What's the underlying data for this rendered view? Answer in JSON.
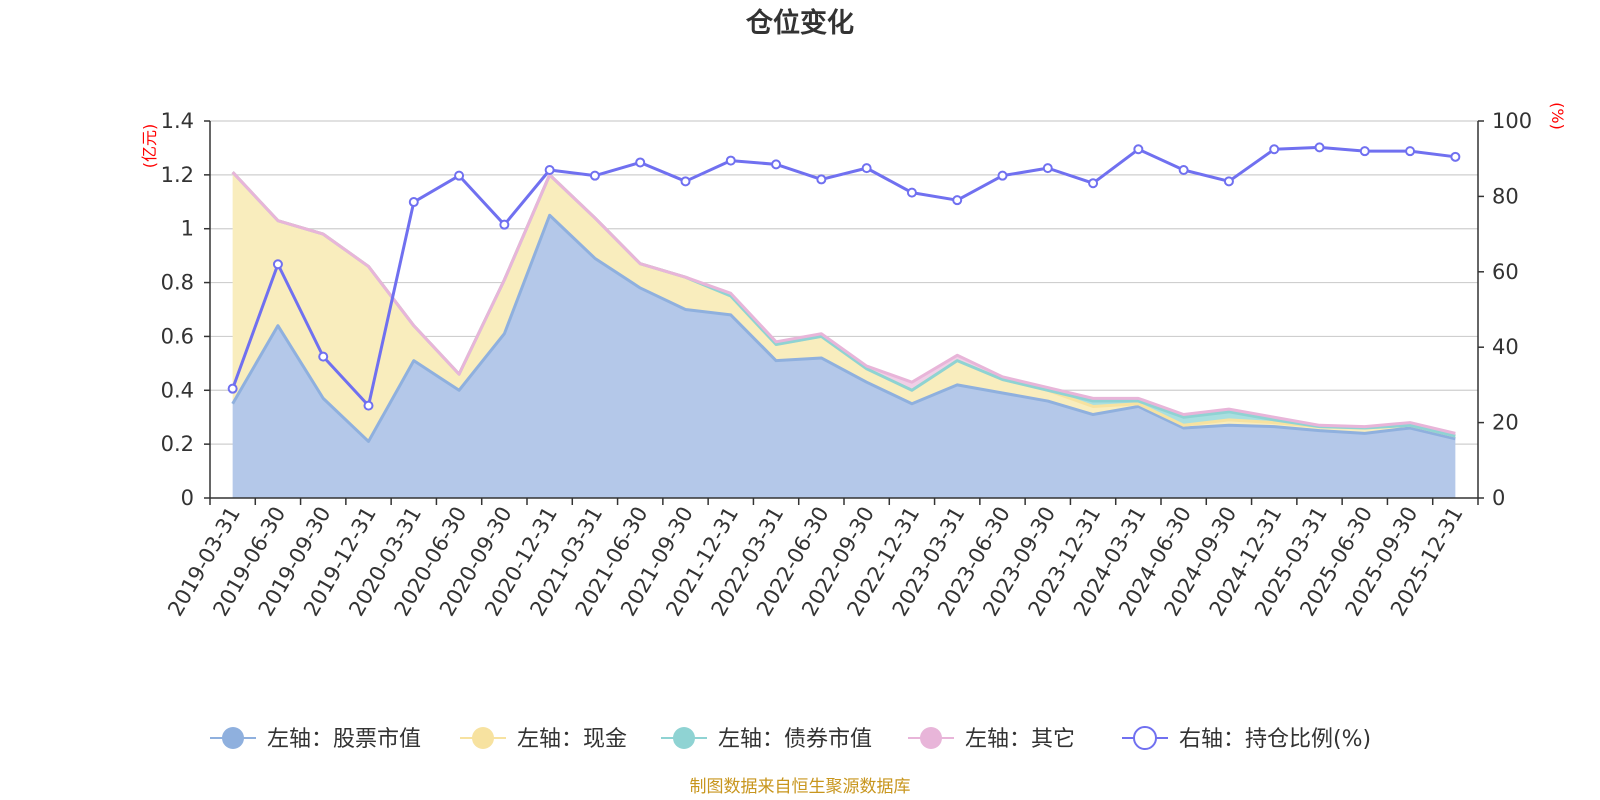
{
  "chart_data": {
    "type": "area",
    "title": "仓位变化",
    "source": "制图数据来自恒生聚源数据库",
    "left_unit": "(亿元)",
    "right_unit": "(%)",
    "left_axis": {
      "min": 0,
      "max": 1.4,
      "ticks": [
        "0",
        "0.2",
        "0.4",
        "0.6",
        "0.8",
        "1",
        "1.2",
        "1.4"
      ]
    },
    "right_axis": {
      "min": 0,
      "max": 100,
      "ticks": [
        "0",
        "20",
        "40",
        "60",
        "80",
        "100"
      ]
    },
    "categories": [
      "2019-03-31",
      "2019-06-30",
      "2019-09-30",
      "2019-12-31",
      "2020-03-31",
      "2020-06-30",
      "2020-09-30",
      "2020-12-31",
      "2021-03-31",
      "2021-06-30",
      "2021-09-30",
      "2021-12-31",
      "2022-03-31",
      "2022-06-30",
      "2022-09-30",
      "2022-12-31",
      "2023-03-31",
      "2023-06-30",
      "2023-09-30",
      "2023-12-31",
      "2024-03-31",
      "2024-06-30",
      "2024-09-30",
      "2024-12-31",
      "2025-03-31",
      "2025-06-30",
      "2025-09-30",
      "2025-12-31"
    ],
    "series": [
      {
        "name": "左轴：股票市值",
        "axis": "left",
        "stack": true,
        "color": "#8fb0de",
        "fill": "#b4c8e9",
        "values": [
          0.35,
          0.64,
          0.37,
          0.21,
          0.51,
          0.4,
          0.61,
          1.05,
          0.89,
          0.78,
          0.7,
          0.68,
          0.51,
          0.52,
          0.43,
          0.35,
          0.42,
          0.39,
          0.36,
          0.31,
          0.34,
          0.26,
          0.27,
          0.265,
          0.25,
          0.24,
          0.26,
          0.22
        ]
      },
      {
        "name": "左轴：现金",
        "axis": "left",
        "stack": true,
        "color": "#f7e2a0",
        "fill": "#f9edbd",
        "values": [
          0.86,
          0.39,
          0.61,
          0.65,
          0.13,
          0.06,
          0.2,
          0.15,
          0.15,
          0.09,
          0.12,
          0.07,
          0.06,
          0.08,
          0.05,
          0.05,
          0.09,
          0.05,
          0.04,
          0.03,
          0.01,
          0.01,
          0.02,
          0.015,
          0.015,
          0.02,
          0.01,
          0.01
        ]
      },
      {
        "name": "左轴：债券市值",
        "axis": "left",
        "stack": true,
        "color": "#8fd3d3",
        "fill": "#a9dfe0",
        "values": [
          0,
          0,
          0,
          0,
          0,
          0,
          0,
          0,
          0,
          0,
          0,
          0,
          0,
          0,
          0,
          0,
          0,
          0,
          0,
          0.02,
          0.01,
          0.03,
          0.03,
          0.01,
          0,
          0,
          0,
          0
        ]
      },
      {
        "name": "左轴：其它",
        "axis": "left",
        "stack": true,
        "color": "#e8b5d9",
        "fill": "#f0cfe7",
        "values": [
          0,
          0,
          0,
          0,
          0,
          0,
          0,
          0,
          0,
          0,
          0,
          0.01,
          0.01,
          0.01,
          0.01,
          0.03,
          0.02,
          0.01,
          0.01,
          0.01,
          0.01,
          0.01,
          0.01,
          0.01,
          0.005,
          0.005,
          0.01,
          0.01
        ]
      },
      {
        "name": "右轴：持仓比例(%)",
        "axis": "right",
        "stack": false,
        "color": "#7070f0",
        "values": [
          29,
          62,
          37.5,
          24.5,
          78.5,
          85.5,
          72.5,
          87,
          85.5,
          89,
          84,
          89.5,
          88.5,
          84.5,
          87.5,
          81,
          79,
          85.5,
          87.5,
          83.5,
          92.5,
          87,
          84,
          92.5,
          93,
          92,
          92,
          90.5
        ]
      }
    ]
  }
}
